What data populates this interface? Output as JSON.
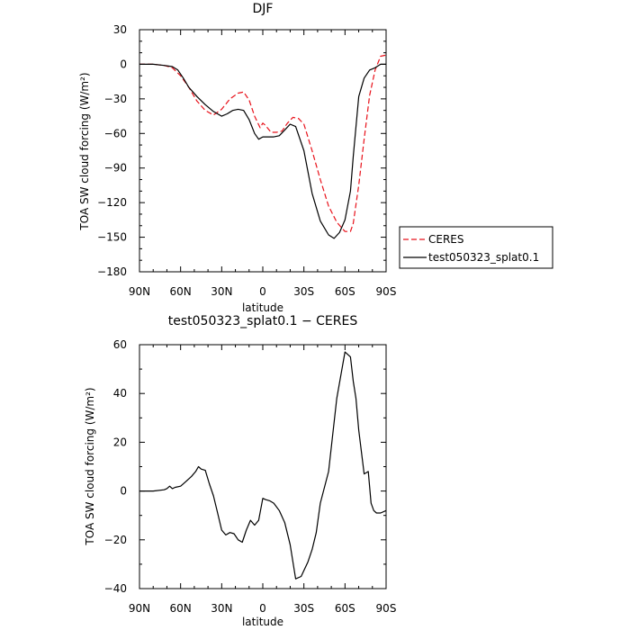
{
  "chart_data": [
    {
      "type": "line",
      "title": "DJF",
      "xlabel": "latitude",
      "ylabel": "TOA SW cloud forcing (W/m²)",
      "xlim": [
        90,
        -90
      ],
      "ylim": [
        -180,
        30
      ],
      "xticks": [
        90,
        60,
        30,
        0,
        -30,
        -60,
        -90
      ],
      "xtick_labels": [
        "90N",
        "60N",
        "30N",
        "0",
        "30S",
        "60S",
        "90S"
      ],
      "yticks": [
        30,
        0,
        -30,
        -60,
        -90,
        -120,
        -150,
        -180
      ],
      "legend_position": "right",
      "series": [
        {
          "name": "CERES",
          "color": "#e8111a",
          "dash": "dashed",
          "x": [
            90,
            80,
            72,
            66,
            60,
            54,
            48,
            42,
            36,
            30,
            24,
            18,
            14,
            10,
            6,
            2,
            0,
            -2,
            -6,
            -10,
            -14,
            -18,
            -22,
            -26,
            -30,
            -36,
            -42,
            -48,
            -54,
            -60,
            -64,
            -66,
            -70,
            -74,
            -78,
            -82,
            -86,
            -90
          ],
          "y": [
            0,
            0,
            -1,
            -3,
            -10,
            -20,
            -32,
            -40,
            -44,
            -39,
            -30,
            -25,
            -24,
            -31,
            -45,
            -55,
            -51,
            -53,
            -59,
            -59,
            -58,
            -51,
            -46,
            -47,
            -52,
            -75,
            -100,
            -123,
            -137,
            -145,
            -145,
            -138,
            -105,
            -65,
            -27,
            -5,
            7,
            8
          ]
        },
        {
          "name": "test050323_splat0.1",
          "color": "#000000",
          "dash": "solid",
          "x": [
            90,
            80,
            72,
            66,
            62,
            58,
            54,
            48,
            42,
            36,
            30,
            26,
            22,
            18,
            14,
            10,
            6,
            3,
            0,
            -4,
            -8,
            -12,
            -16,
            -20,
            -24,
            -30,
            -36,
            -42,
            -48,
            -52,
            -56,
            -60,
            -64,
            -66,
            -70,
            -74,
            -78,
            -82,
            -86,
            -90
          ],
          "y": [
            0,
            0,
            -1,
            -2,
            -5,
            -12,
            -20,
            -28,
            -35,
            -41,
            -45,
            -43,
            -40,
            -39,
            -40,
            -48,
            -60,
            -65,
            -63,
            -63,
            -63,
            -62,
            -57,
            -52,
            -54,
            -75,
            -112,
            -136,
            -148,
            -151,
            -146,
            -135,
            -110,
            -80,
            -28,
            -12,
            -5,
            -3,
            0,
            0
          ]
        }
      ]
    },
    {
      "type": "line",
      "title": "test050323_splat0.1 − CERES",
      "xlabel": "latitude",
      "ylabel": "TOA SW cloud forcing (W/m²)",
      "xlim": [
        90,
        -90
      ],
      "ylim": [
        -40,
        60
      ],
      "xticks": [
        90,
        60,
        30,
        0,
        -30,
        -60,
        -90
      ],
      "xtick_labels": [
        "90N",
        "60N",
        "30N",
        "0",
        "30S",
        "60S",
        "90S"
      ],
      "yticks": [
        60,
        40,
        20,
        0,
        -20,
        -40
      ],
      "series": [
        {
          "color": "#000000",
          "dash": "solid",
          "x": [
            90,
            80,
            72,
            70,
            68,
            66,
            64,
            60,
            56,
            52,
            49,
            47,
            45,
            42,
            39,
            36,
            33,
            30,
            27,
            24,
            21,
            18,
            15,
            12,
            9,
            6,
            3,
            0,
            -2,
            -5,
            -8,
            -12,
            -16,
            -20,
            -24,
            -28,
            -33,
            -36,
            -39,
            -42,
            -48,
            -54,
            -60,
            -64,
            -66,
            -68,
            -70,
            -74,
            -77,
            -79,
            -81,
            -83,
            -86,
            -90
          ],
          "y": [
            0,
            0,
            0.5,
            1,
            2,
            1,
            1.5,
            2,
            4,
            6,
            8,
            10,
            9,
            8.5,
            3,
            -2,
            -9,
            -16,
            -18,
            -17,
            -17.5,
            -20,
            -21,
            -16,
            -12,
            -14,
            -12,
            -3,
            -3.5,
            -4,
            -5,
            -8,
            -13,
            -22,
            -36,
            -35,
            -29,
            -24,
            -17,
            -5,
            8,
            38,
            57,
            55,
            45,
            38,
            25,
            7,
            8,
            -5,
            -8,
            -9,
            -9,
            -8
          ]
        }
      ]
    }
  ]
}
